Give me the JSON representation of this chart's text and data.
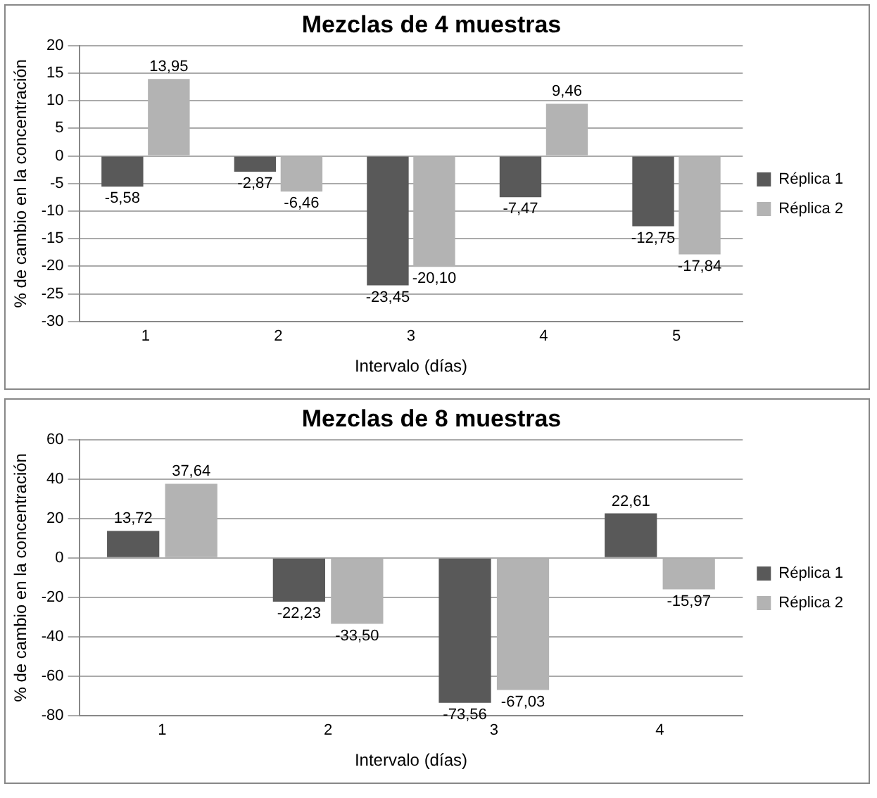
{
  "chart_data": [
    {
      "type": "bar",
      "title": "Mezclas de 4 muestras",
      "xlabel": "Intervalo (días)",
      "ylabel": "% de cambio en la concentración",
      "categories": [
        "1",
        "2",
        "3",
        "4",
        "5"
      ],
      "series": [
        {
          "name": "Réplica 1",
          "color": "#595959",
          "values": [
            -5.58,
            -2.87,
            -23.45,
            -7.47,
            -12.75
          ],
          "value_labels": [
            "-5,58",
            "-2,87",
            "-23,45",
            "-7,47",
            "-12,75"
          ]
        },
        {
          "name": "Réplica 2",
          "color": "#b3b3b3",
          "values": [
            13.95,
            -6.46,
            -20.1,
            9.46,
            -17.84
          ],
          "value_labels": [
            "13,95",
            "-6,46",
            "-20,10",
            "9,46",
            "-17,84"
          ]
        }
      ],
      "ylim": [
        -30,
        20
      ],
      "yticks": [
        -30,
        -25,
        -20,
        -15,
        -10,
        -5,
        0,
        5,
        10,
        15,
        20
      ],
      "grid": "y",
      "legend": "right"
    },
    {
      "type": "bar",
      "title": "Mezclas de 8 muestras",
      "xlabel": "Intervalo (días)",
      "ylabel": "% de cambio en la concentración",
      "categories": [
        "1",
        "2",
        "3",
        "4"
      ],
      "series": [
        {
          "name": "Réplica 1",
          "color": "#595959",
          "values": [
            13.72,
            -22.23,
            -73.56,
            22.61
          ],
          "value_labels": [
            "13,72",
            "-22,23",
            "-73,56",
            "22,61"
          ]
        },
        {
          "name": "Réplica 2",
          "color": "#b3b3b3",
          "values": [
            37.64,
            -33.5,
            -67.03,
            -15.97
          ],
          "value_labels": [
            "37,64",
            "-33,50",
            "-67,03",
            "-15,97"
          ]
        }
      ],
      "ylim": [
        -80,
        60
      ],
      "yticks": [
        -80,
        -60,
        -40,
        -20,
        0,
        20,
        40,
        60
      ],
      "grid": "y",
      "legend": "right"
    }
  ]
}
